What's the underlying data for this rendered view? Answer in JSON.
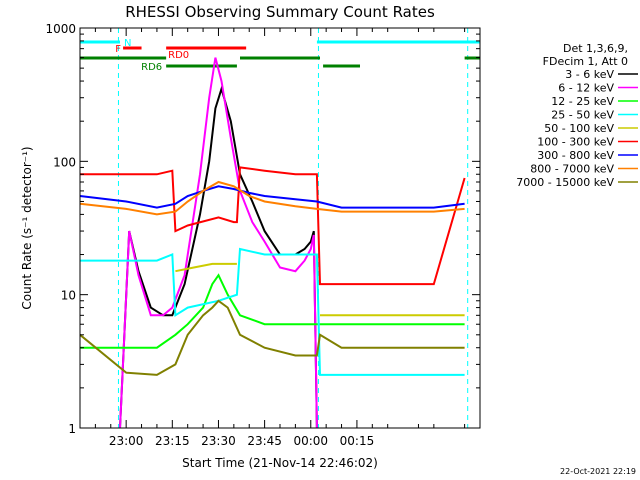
{
  "chart_data": {
    "type": "line",
    "title": "RHESSI Observing Summary Count Rates",
    "xlabel": "Start Time (21-Nov-14 22:46:02)",
    "ylabel": "Count Rate (s⁻¹ detector⁻¹)",
    "y_scale": "log",
    "ylim": [
      1,
      1000
    ],
    "xlim_minutes": [
      -15,
      115
    ],
    "x_tick_labels": [
      "23:00",
      "23:15",
      "23:30",
      "23:45",
      "00:00",
      "00:15"
    ],
    "x_tick_minutes": [
      0,
      15,
      30,
      45,
      60,
      75
    ],
    "y_tick_labels": [
      "1",
      "10",
      "100",
      "1000"
    ],
    "y_tick_values": [
      1,
      10,
      100,
      1000
    ],
    "legend_header": [
      "Det 1,3,6,9,",
      "FDecim 1, Att 0"
    ],
    "legend_position": "right",
    "footer_date": "22-Oct-2021 22:19",
    "flags": [
      {
        "label": "N",
        "color": "#00ffff",
        "segments": [
          [
            -15,
            -2
          ],
          [
            62,
            115
          ]
        ],
        "level": 0
      },
      {
        "label": "F",
        "color": "#ff0000",
        "segments": [
          [
            -1,
            5
          ]
        ],
        "level": 1
      },
      {
        "label": "RD0",
        "color": "#ff0000",
        "segments": [
          [
            13,
            39
          ]
        ],
        "level": 1
      },
      {
        "label": "",
        "color": "#008000",
        "segments": [
          [
            -15,
            13
          ],
          [
            37,
            63
          ],
          [
            110,
            115
          ]
        ],
        "level": 2
      },
      {
        "label": "RD6",
        "color": "#008000",
        "segments": [
          [
            13,
            36
          ],
          [
            64,
            76
          ]
        ],
        "level": 3
      }
    ],
    "dashed_vlines_minutes": [
      -2.5,
      62.5,
      111
    ],
    "series": [
      {
        "name": "3 - 6 keV",
        "color": "#000000",
        "x": [
          -15,
          -6,
          -2,
          1,
          4,
          8,
          12,
          15,
          19,
          24,
          27,
          29,
          31,
          34,
          37,
          41,
          45,
          50,
          55,
          58,
          60,
          61,
          62,
          63,
          70,
          80,
          90,
          100,
          110
        ],
        "y": [
          null,
          null,
          1,
          30,
          15,
          8,
          7,
          7,
          12,
          40,
          100,
          250,
          350,
          200,
          80,
          50,
          30,
          20,
          20,
          22,
          25,
          30,
          1,
          null,
          null,
          null,
          null,
          null,
          null
        ]
      },
      {
        "name": "6 - 12 keV",
        "color": "#ff00ff",
        "x": [
          -2,
          1,
          4,
          8,
          12,
          15,
          19,
          24,
          27,
          29,
          31,
          34,
          37,
          41,
          45,
          50,
          55,
          58,
          60,
          61,
          62
        ],
        "y": [
          1,
          30,
          14,
          7,
          7,
          8,
          14,
          80,
          300,
          600,
          400,
          150,
          60,
          35,
          25,
          16,
          15,
          18,
          22,
          28,
          1
        ]
      },
      {
        "name": "12 - 25 keV",
        "color": "#00ff00",
        "x": [
          -15,
          0,
          10,
          16,
          20,
          25,
          28,
          30,
          33,
          37,
          45,
          55,
          62,
          70,
          80,
          90,
          100,
          110
        ],
        "y": [
          4,
          4,
          4,
          5,
          6,
          8,
          12,
          14,
          10,
          7,
          6,
          6,
          6,
          6,
          6,
          6,
          6,
          6
        ]
      },
      {
        "name": "25 - 50 keV",
        "color": "#00ffff",
        "x": [
          -15,
          0,
          10,
          15,
          16,
          20,
          30,
          36,
          37,
          45,
          55,
          62,
          63,
          70,
          80,
          90,
          100,
          110
        ],
        "y": [
          18,
          18,
          18,
          20,
          7,
          8,
          9,
          10,
          22,
          20,
          20,
          20,
          2.5,
          2.5,
          2.5,
          2.5,
          2.5,
          2.5
        ]
      },
      {
        "name": "50 - 100 keV",
        "color": "#cccc00",
        "x": [
          16,
          22,
          28,
          33,
          36,
          37,
          63,
          70,
          80,
          90,
          100,
          110
        ],
        "y": [
          15,
          16,
          17,
          17,
          17,
          null,
          7,
          7,
          7,
          7,
          7,
          7
        ]
      },
      {
        "name": "100 - 300 keV",
        "color": "#ff0000",
        "x": [
          -15,
          0,
          10,
          15,
          16,
          20,
          30,
          35,
          36,
          37,
          45,
          55,
          62,
          63,
          70,
          80,
          90,
          100,
          110
        ],
        "y": [
          80,
          80,
          80,
          85,
          30,
          33,
          38,
          35,
          35,
          90,
          85,
          80,
          80,
          12,
          12,
          12,
          12,
          12,
          75
        ]
      },
      {
        "name": "300 - 800 keV",
        "color": "#0000ff",
        "x": [
          -15,
          0,
          10,
          16,
          20,
          25,
          30,
          35,
          40,
          45,
          55,
          62,
          70,
          80,
          90,
          100,
          110
        ],
        "y": [
          55,
          50,
          45,
          48,
          55,
          60,
          65,
          62,
          58,
          55,
          52,
          50,
          45,
          45,
          45,
          45,
          48
        ]
      },
      {
        "name": "800 - 7000 keV",
        "color": "#ff8000",
        "x": [
          -15,
          0,
          10,
          16,
          20,
          25,
          30,
          35,
          40,
          45,
          55,
          62,
          70,
          80,
          90,
          100,
          110
        ],
        "y": [
          48,
          44,
          40,
          42,
          50,
          60,
          70,
          65,
          55,
          50,
          46,
          44,
          42,
          42,
          42,
          42,
          44
        ]
      },
      {
        "name": "7000 - 15000 keV",
        "color": "#808000",
        "x": [
          -15,
          0,
          10,
          16,
          20,
          25,
          28,
          30,
          33,
          37,
          45,
          55,
          62,
          63,
          70,
          80,
          90,
          100,
          110
        ],
        "y": [
          5,
          2.6,
          2.5,
          3,
          5,
          7,
          8,
          9,
          8,
          5,
          4,
          3.5,
          3.5,
          5,
          4,
          4,
          4,
          4,
          4
        ]
      }
    ]
  }
}
